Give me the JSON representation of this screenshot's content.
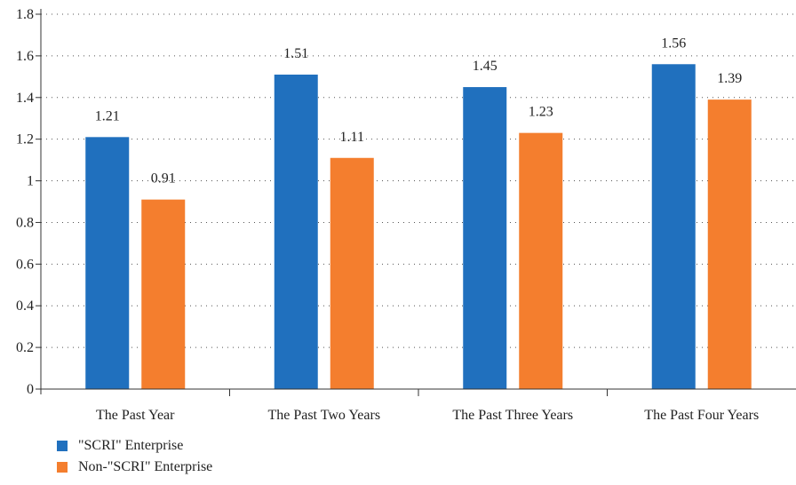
{
  "chart_data": {
    "type": "bar",
    "categories": [
      "The Past Year",
      "The Past Two Years",
      "The Past Three Years",
      "The Past Four Years"
    ],
    "series": [
      {
        "name": "\"SCRI\" Enterprise",
        "values": [
          1.21,
          1.51,
          1.45,
          1.56
        ],
        "color": "#2070be"
      },
      {
        "name": "Non-\"SCRI\" Enterprise",
        "values": [
          0.91,
          1.11,
          1.23,
          1.39
        ],
        "color": "#f47e2e"
      }
    ],
    "value_labels": [
      [
        "1.21",
        "1.51",
        "1.45",
        "1.56"
      ],
      [
        "0.91",
        "1.11",
        "1.23",
        "1.39"
      ]
    ],
    "yticks": [
      "0",
      "0.2",
      "0.4",
      "0.6",
      "0.8",
      "1",
      "1.2",
      "1.4",
      "1.6",
      "1.8"
    ],
    "ylim": [
      0,
      1.8
    ],
    "grid": "dotted horizontal",
    "legend_position": "bottom-left"
  }
}
